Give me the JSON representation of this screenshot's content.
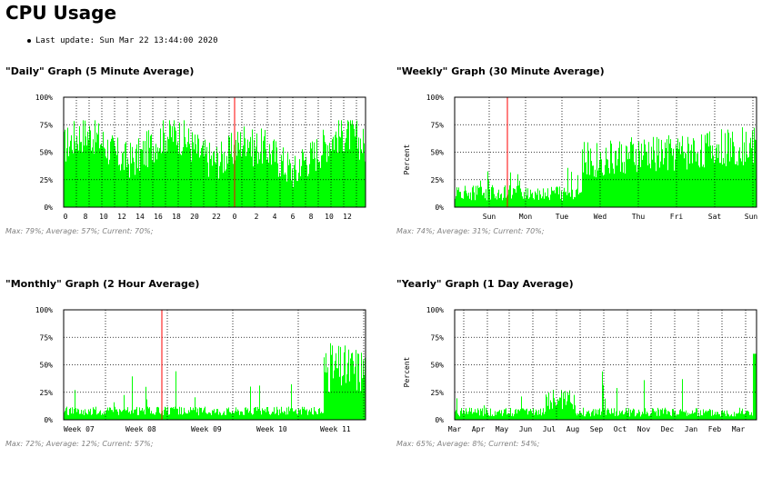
{
  "page": {
    "title": "CPU Usage",
    "last_update": "Last update: Sun Mar 22 13:44:00 2020"
  },
  "graphs": [
    {
      "id": "daily",
      "title": "\"Daily\" Graph (5 Minute Average)",
      "stats": "Max: 79%; Average: 57%; Current: 70%;",
      "y_axis_label": "",
      "y_ticks": [
        "100%",
        "75%",
        "50%",
        "25%",
        "0%"
      ],
      "x_labels": [
        "0",
        "8",
        "10",
        "12",
        "14",
        "16",
        "18",
        "20",
        "22",
        "0",
        "2",
        "4",
        "6",
        "8",
        "10",
        "12"
      ],
      "max": 79,
      "average": 57,
      "current": 70
    },
    {
      "id": "weekly",
      "title": "\"Weekly\" Graph (30 Minute Average)",
      "stats": "Max: 74%; Average: 31%; Current: 70%;",
      "y_axis_label": "Percent",
      "y_ticks": [
        "100%",
        "75%",
        "50%",
        "25%",
        "0%"
      ],
      "x_labels": [
        "Sun",
        "Mon",
        "Tue",
        "Wed",
        "Thu",
        "Fri",
        "Sat",
        "Sun"
      ],
      "max": 74,
      "average": 31,
      "current": 70
    },
    {
      "id": "monthly",
      "title": "\"Monthly\" Graph (2 Hour Average)",
      "stats": "Max: 72%; Average: 12%; Current: 57%;",
      "y_axis_label": "",
      "y_ticks": [
        "100%",
        "75%",
        "50%",
        "25%",
        "0%"
      ],
      "x_labels": [
        "Week 07",
        "Week 08",
        "Week 09",
        "Week 10",
        "Week 11"
      ],
      "max": 72,
      "average": 12,
      "current": 57
    },
    {
      "id": "yearly",
      "title": "\"Yearly\" Graph (1 Day Average)",
      "stats": "Max: 65%; Average: 8%; Current: 54%;",
      "y_axis_label": "Percent",
      "y_ticks": [
        "100%",
        "75%",
        "50%",
        "25%",
        "0%"
      ],
      "x_labels": [
        "Mar",
        "Apr",
        "May",
        "Jun",
        "Jul",
        "Aug",
        "Sep",
        "Oct",
        "Nov",
        "Dec",
        "Jan",
        "Feb",
        "Mar"
      ],
      "max": 65,
      "average": 8,
      "current": 54
    }
  ],
  "colors": {
    "fill": "#00ff00",
    "grid": "#000000",
    "marker": "#ff0000",
    "stats_text": "#808080"
  }
}
